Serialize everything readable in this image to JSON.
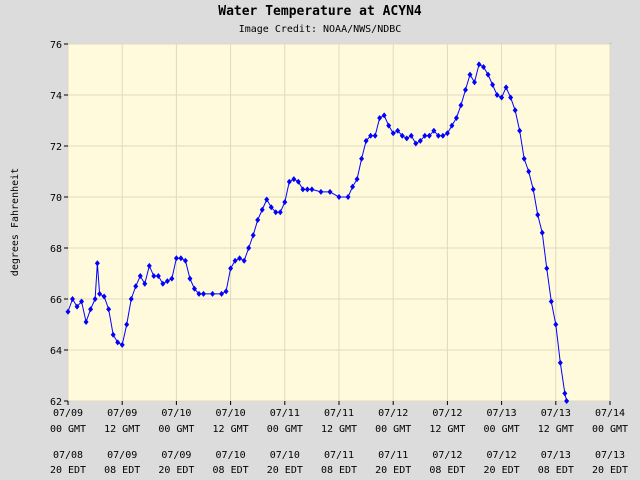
{
  "chart_data": {
    "type": "line",
    "title": "Water Temperature at ACYN4",
    "subtitle": "Image Credit: NOAA/NWS/NDBC",
    "y_label": "degrees Fahrenheit",
    "ylim": [
      62,
      76
    ],
    "yticks": [
      62,
      64,
      66,
      68,
      70,
      72,
      74,
      76
    ],
    "xlim": [
      0,
      120
    ],
    "xticks": [
      {
        "value": 0,
        "label": [
          "07/09",
          "00 GMT",
          "07/08",
          "20 EDT"
        ]
      },
      {
        "value": 12,
        "label": [
          "07/09",
          "12 GMT",
          "07/09",
          "08 EDT"
        ]
      },
      {
        "value": 24,
        "label": [
          "07/10",
          "00 GMT",
          "07/09",
          "20 EDT"
        ]
      },
      {
        "value": 36,
        "label": [
          "07/10",
          "12 GMT",
          "07/10",
          "08 EDT"
        ]
      },
      {
        "value": 48,
        "label": [
          "07/11",
          "00 GMT",
          "07/10",
          "20 EDT"
        ]
      },
      {
        "value": 60,
        "label": [
          "07/11",
          "12 GMT",
          "07/11",
          "08 EDT"
        ]
      },
      {
        "value": 72,
        "label": [
          "07/12",
          "00 GMT",
          "07/11",
          "20 EDT"
        ]
      },
      {
        "value": 84,
        "label": [
          "07/12",
          "12 GMT",
          "07/12",
          "08 EDT"
        ]
      },
      {
        "value": 96,
        "label": [
          "07/13",
          "00 GMT",
          "07/12",
          "20 EDT"
        ]
      },
      {
        "value": 108,
        "label": [
          "07/13",
          "12 GMT",
          "07/13",
          "08 EDT"
        ]
      },
      {
        "value": 120,
        "label": [
          "07/14",
          "00 GMT",
          "07/13",
          "20 EDT"
        ]
      }
    ],
    "grid": true,
    "series": [
      {
        "color": "#0000ff",
        "x": [
          0,
          1,
          2,
          3,
          4,
          5,
          6,
          6.5,
          7,
          8,
          9,
          10,
          11,
          12,
          13,
          14,
          15,
          16,
          17,
          18,
          19,
          20,
          21,
          22,
          23,
          24,
          25,
          26,
          27,
          28,
          29,
          30,
          32,
          34,
          35,
          36,
          37,
          38,
          39,
          40,
          41,
          42,
          43,
          44,
          45,
          46,
          47,
          48,
          49,
          50,
          51,
          52,
          53,
          54,
          56,
          58,
          60,
          62,
          63,
          64,
          65,
          66,
          67,
          68,
          69,
          70,
          71,
          72,
          73,
          74,
          75,
          76,
          77,
          78,
          79,
          80,
          81,
          82,
          83,
          84,
          85,
          86,
          87,
          88,
          89,
          90,
          91,
          92,
          93,
          94,
          95,
          96,
          97,
          98,
          99,
          100,
          101,
          102,
          103,
          104,
          105,
          106,
          107,
          108,
          109,
          110,
          110.4
        ],
        "values": [
          65.5,
          66.0,
          65.7,
          65.9,
          65.1,
          65.6,
          66.0,
          67.4,
          66.2,
          66.1,
          65.6,
          64.6,
          64.3,
          64.2,
          65.0,
          66.0,
          66.5,
          66.9,
          66.6,
          67.3,
          66.9,
          66.9,
          66.6,
          66.7,
          66.8,
          67.6,
          67.6,
          67.5,
          66.8,
          66.4,
          66.2,
          66.2,
          66.2,
          66.2,
          66.3,
          67.2,
          67.5,
          67.6,
          67.5,
          68.0,
          68.5,
          69.1,
          69.5,
          69.9,
          69.6,
          69.4,
          69.4,
          69.8,
          70.6,
          70.7,
          70.6,
          70.3,
          70.3,
          70.3,
          70.2,
          70.2,
          70.0,
          70.0,
          70.4,
          70.7,
          71.5,
          72.2,
          72.4,
          72.4,
          73.1,
          73.2,
          72.8,
          72.5,
          72.6,
          72.4,
          72.3,
          72.4,
          72.1,
          72.2,
          72.4,
          72.4,
          72.6,
          72.4,
          72.4,
          72.5,
          72.8,
          73.1,
          73.6,
          74.2,
          74.8,
          74.5,
          75.2,
          75.1,
          74.8,
          74.4,
          74.0,
          73.9,
          74.3,
          73.9,
          73.4,
          72.6,
          71.5,
          71.0,
          70.3,
          69.3,
          68.6,
          67.2,
          65.9,
          65.0,
          63.5,
          62.3,
          62.0
        ]
      }
    ]
  }
}
